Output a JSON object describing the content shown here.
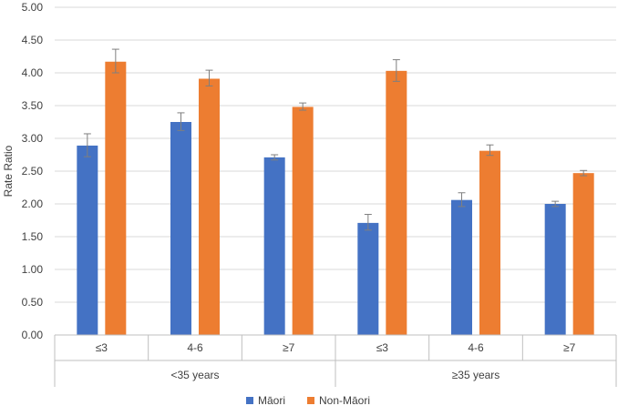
{
  "chart_data": {
    "type": "bar",
    "title": "",
    "ylabel": "Rate Ratio",
    "xlabel": "",
    "ylim": [
      0,
      5
    ],
    "yticks": [
      "0.00",
      "0.50",
      "1.00",
      "1.50",
      "2.00",
      "2.50",
      "3.00",
      "3.50",
      "4.00",
      "4.50",
      "5.00"
    ],
    "grid": true,
    "legend_position": "bottom",
    "groups": [
      {
        "label": "<35 years",
        "categories": [
          "≤3",
          "4-6",
          "≥7"
        ]
      },
      {
        "label": "≥35 years",
        "categories": [
          "≤3",
          "4-6",
          "≥7"
        ]
      }
    ],
    "series": [
      {
        "name": "Māori",
        "color": "#4472C4",
        "values": [
          2.89,
          3.25,
          2.71,
          1.71,
          2.06,
          2.0
        ],
        "error_low": [
          2.72,
          3.12,
          2.67,
          1.6,
          1.96,
          1.96
        ],
        "error_high": [
          3.07,
          3.39,
          2.75,
          1.84,
          2.17,
          2.04
        ]
      },
      {
        "name": "Non-Māori",
        "color": "#ED7D31",
        "values": [
          4.17,
          3.91,
          3.48,
          4.03,
          2.81,
          2.47
        ],
        "error_low": [
          4.0,
          3.8,
          3.43,
          3.87,
          2.74,
          2.43
        ],
        "error_high": [
          4.36,
          4.04,
          3.54,
          4.2,
          2.9,
          2.51
        ]
      }
    ]
  }
}
